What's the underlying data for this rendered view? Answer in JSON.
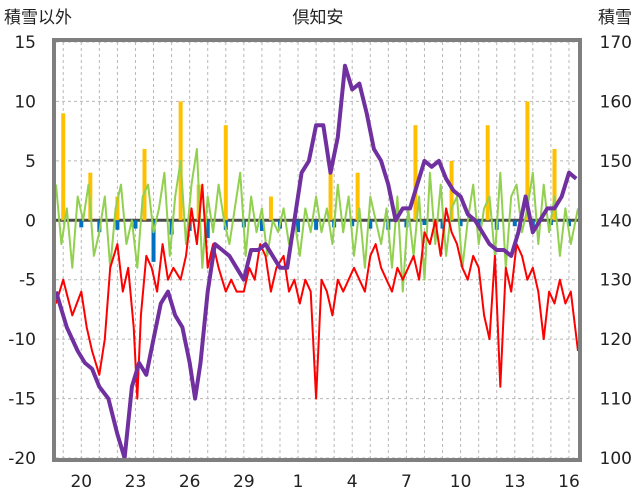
{
  "chart_data": {
    "type": "line",
    "title": "倶知安",
    "y_left_label": "積雪以外",
    "y_right_label": "積雪",
    "y_left_range": [
      -20,
      15
    ],
    "y_left_ticks": [
      "15",
      "10",
      "5",
      "0",
      "-5",
      "-10",
      "-15",
      "-20"
    ],
    "y_right_range": [
      100,
      170
    ],
    "y_right_ticks": [
      "170",
      "160",
      "150",
      "140",
      "130",
      "120",
      "110",
      "100"
    ],
    "x_range": [
      18.6,
      47.5
    ],
    "x_ticks": [
      {
        "x": 20,
        "label": "20"
      },
      {
        "x": 23,
        "label": "23"
      },
      {
        "x": 26,
        "label": "26"
      },
      {
        "x": 29,
        "label": "29"
      },
      {
        "x": 32,
        "label": "1"
      },
      {
        "x": 35,
        "label": "4"
      },
      {
        "x": 38,
        "label": "7"
      },
      {
        "x": 41,
        "label": "10"
      },
      {
        "x": 44,
        "label": "13"
      },
      {
        "x": 47,
        "label": "16"
      }
    ],
    "colors": {
      "snow_depth": "#7030a0",
      "temperature": "#ff0000",
      "wind": "#92d050",
      "snowfall": "#ffc000",
      "pressure": "#0070c0",
      "frame": "#7f7f7f"
    },
    "series": [
      {
        "key": "snow_depth",
        "axis": "right",
        "x": [
          18.6,
          19.2,
          19.8,
          20.2,
          20.6,
          21.0,
          21.5,
          22.0,
          22.4,
          22.8,
          23.2,
          23.6,
          24.0,
          24.4,
          24.8,
          25.2,
          25.6,
          26.0,
          26.3,
          26.6,
          27.0,
          27.4,
          27.8,
          28.2,
          28.6,
          29.0,
          29.4,
          29.8,
          30.2,
          30.6,
          31.0,
          31.4,
          31.8,
          32.2,
          32.6,
          33.0,
          33.4,
          33.8,
          34.2,
          34.6,
          35.0,
          35.4,
          35.8,
          36.2,
          36.6,
          37.0,
          37.4,
          37.8,
          38.2,
          38.6,
          39.0,
          39.4,
          39.8,
          40.2,
          40.6,
          41.0,
          41.4,
          41.8,
          42.2,
          42.6,
          43.0,
          43.4,
          43.8,
          44.2,
          44.6,
          45.0,
          45.4,
          45.8,
          46.2,
          46.6,
          47.0,
          47.4
        ],
        "y": [
          128,
          122,
          118,
          116,
          115,
          112,
          110,
          104,
          100,
          112,
          116,
          114,
          120,
          126,
          128,
          124,
          122,
          116,
          110,
          116,
          128,
          136,
          135,
          134,
          132,
          130,
          135,
          135,
          136,
          134,
          132,
          132,
          140,
          148,
          150,
          156,
          156,
          148,
          154,
          166,
          162,
          163,
          158,
          152,
          150,
          146,
          140,
          142,
          142,
          146,
          150,
          149,
          150,
          147,
          145,
          144,
          141,
          140,
          138,
          136,
          135,
          135,
          134,
          138,
          144,
          138,
          140,
          142,
          142,
          144,
          148,
          147
        ]
      },
      {
        "key": "temperature",
        "axis": "left",
        "x": [
          18.6,
          19.0,
          19.5,
          20.0,
          20.3,
          20.6,
          21.0,
          21.3,
          21.6,
          22.0,
          22.3,
          22.6,
          22.9,
          23.1,
          23.3,
          23.6,
          23.9,
          24.2,
          24.5,
          24.8,
          25.1,
          25.5,
          25.8,
          26.1,
          26.4,
          26.7,
          27.0,
          27.3,
          27.6,
          28.0,
          28.3,
          28.6,
          29.0,
          29.3,
          29.6,
          29.9,
          30.2,
          30.5,
          30.8,
          31.2,
          31.5,
          31.8,
          32.1,
          32.4,
          32.7,
          33.0,
          33.3,
          33.6,
          33.9,
          34.2,
          34.5,
          34.8,
          35.1,
          35.4,
          35.7,
          36.0,
          36.3,
          36.6,
          36.9,
          37.2,
          37.5,
          37.8,
          38.1,
          38.4,
          38.7,
          39.0,
          39.3,
          39.6,
          39.9,
          40.2,
          40.5,
          40.8,
          41.1,
          41.4,
          41.7,
          42.0,
          42.3,
          42.6,
          42.9,
          43.2,
          43.5,
          43.8,
          44.1,
          44.4,
          44.7,
          45.0,
          45.3,
          45.6,
          45.9,
          46.2,
          46.5,
          46.8,
          47.1,
          47.5
        ],
        "y": [
          -7,
          -5,
          -8,
          -6,
          -9,
          -11,
          -13,
          -10,
          -4,
          -2,
          -6,
          -4,
          -9,
          -15,
          -8,
          -3,
          -4,
          -6,
          -2,
          -5,
          -4,
          -5,
          -3,
          1,
          -2,
          3,
          -4,
          -2,
          -4,
          -6,
          -5,
          -6,
          -6,
          -4,
          -5,
          -2,
          -3,
          -6,
          -4,
          -3,
          -6,
          -5,
          -7,
          -5,
          -6,
          -15,
          -5,
          -6,
          -8,
          -5,
          -6,
          -5,
          -4,
          -5,
          -6,
          -3,
          -2,
          -4,
          -5,
          -6,
          -4,
          -5,
          -4,
          -3,
          -5,
          -1,
          -2,
          0,
          -3,
          1,
          -1,
          -2,
          -4,
          -5,
          -3,
          -4,
          -8,
          -10,
          -3,
          -14,
          -4,
          -6,
          -2,
          -3,
          -5,
          -4,
          -6,
          -10,
          -6,
          -7,
          -5,
          -7,
          -6,
          -11
        ]
      },
      {
        "key": "wind",
        "axis": "left",
        "x": [
          18.6,
          18.9,
          19.2,
          19.5,
          19.8,
          20.1,
          20.4,
          20.7,
          21.0,
          21.3,
          21.6,
          21.9,
          22.2,
          22.5,
          22.8,
          23.1,
          23.4,
          23.7,
          24.0,
          24.3,
          24.6,
          24.9,
          25.2,
          25.5,
          25.8,
          26.1,
          26.4,
          26.7,
          27.0,
          27.3,
          27.6,
          27.9,
          28.2,
          28.5,
          28.8,
          29.1,
          29.4,
          29.7,
          30.0,
          30.3,
          30.6,
          30.9,
          31.2,
          31.5,
          31.8,
          32.1,
          32.4,
          32.7,
          33.0,
          33.3,
          33.6,
          33.9,
          34.2,
          34.5,
          34.8,
          35.1,
          35.4,
          35.7,
          36.0,
          36.3,
          36.6,
          36.9,
          37.2,
          37.5,
          37.8,
          38.1,
          38.4,
          38.7,
          39.0,
          39.3,
          39.6,
          39.9,
          40.2,
          40.5,
          40.8,
          41.1,
          41.4,
          41.7,
          42.0,
          42.3,
          42.6,
          42.9,
          43.2,
          43.5,
          43.8,
          44.1,
          44.4,
          44.7,
          45.0,
          45.3,
          45.6,
          45.9,
          46.2,
          46.5,
          46.8,
          47.1,
          47.5
        ],
        "y": [
          3,
          -2,
          1,
          -4,
          2,
          0,
          3,
          -3,
          -1,
          2,
          -4,
          1,
          3,
          -2,
          0,
          -4,
          2,
          3,
          -1,
          1,
          4,
          -3,
          2,
          5,
          -2,
          3,
          6,
          -4,
          2,
          -1,
          3,
          0,
          -2,
          1,
          4,
          -3,
          2,
          -1,
          1,
          -3,
          0,
          -1,
          1,
          -2,
          0,
          -3,
          1,
          -1,
          2,
          -1,
          1,
          -2,
          3,
          -1,
          2,
          -3,
          1,
          -4,
          2,
          0,
          -2,
          1,
          -4,
          2,
          -6,
          1,
          -3,
          2,
          -5,
          4,
          -2,
          3,
          -3,
          1,
          2,
          -4,
          0,
          3,
          -2,
          1,
          2,
          -3,
          4,
          -4,
          2,
          3,
          -1,
          1,
          4,
          -2,
          3,
          -1,
          2,
          -3,
          1,
          -2,
          1
        ]
      },
      {
        "key": "snowfall",
        "axis": "left",
        "kind": "bar",
        "x": [
          19.0,
          20.5,
          22.0,
          23.5,
          25.5,
          26.5,
          28.0,
          30.5,
          33.8,
          35.3,
          38.5,
          40.5,
          42.5,
          44.7,
          46.2
        ],
        "y": [
          9,
          4,
          2,
          6,
          10,
          3,
          8,
          2,
          5,
          4,
          8,
          5,
          8,
          10,
          6
        ]
      },
      {
        "key": "pressure",
        "axis": "left",
        "kind": "bar",
        "x": [
          20.0,
          21.0,
          22.0,
          23.0,
          24.0,
          25.0,
          26.0,
          27.0,
          28.0,
          29.0,
          30.0,
          31.0,
          32.0,
          33.0,
          34.0,
          35.0,
          36.0,
          37.0,
          38.0,
          39.0,
          40.0,
          41.0,
          42.0,
          43.0,
          44.0,
          45.0,
          46.0,
          47.0
        ],
        "y": [
          -0.6,
          -1.0,
          -0.8,
          -0.7,
          -3.5,
          -1.2,
          -0.9,
          -1.5,
          -0.8,
          -0.6,
          -0.9,
          -0.7,
          -1.0,
          -0.8,
          -0.6,
          -0.5,
          -0.7,
          -0.8,
          -0.6,
          -0.4,
          -0.7,
          -0.5,
          -0.6,
          -0.8,
          -0.5,
          -0.6,
          -0.4,
          -0.5
        ]
      }
    ]
  }
}
